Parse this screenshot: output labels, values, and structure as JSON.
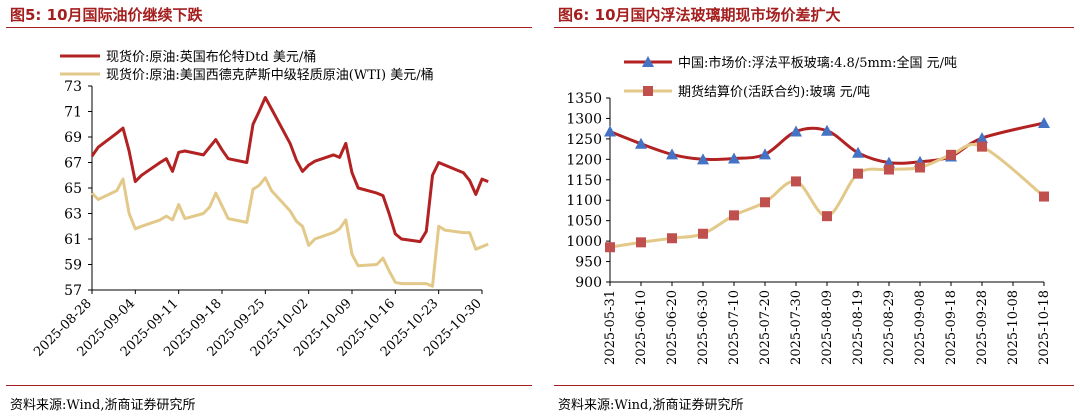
{
  "panels": [
    {
      "title": "图5:   10月国际油价继续下跌",
      "source": "资料来源:Wind,浙商证券研究所"
    },
    {
      "title": "图6:   10月国内浮法玻璃期现市场价差扩大",
      "source": "资料来源:Wind,浙商证券研究所"
    }
  ],
  "chart_data": [
    {
      "type": "line",
      "title": "",
      "xlabel": "",
      "ylabel": "",
      "ylim": [
        57,
        73
      ],
      "yticks": [
        57,
        59,
        61,
        63,
        65,
        67,
        69,
        71,
        73
      ],
      "grid": false,
      "legend_position": "top-left",
      "x_ticks": [
        "2025-08-28",
        "2025-09-04",
        "2025-09-11",
        "2025-09-18",
        "2025-09-25",
        "2025-10-02",
        "2025-10-09",
        "2025-10-16",
        "2025-10-23",
        "2025-10-30"
      ],
      "x": [
        "2025-08-28",
        "2025-08-29",
        "2025-09-01",
        "2025-09-02",
        "2025-09-03",
        "2025-09-04",
        "2025-09-05",
        "2025-09-08",
        "2025-09-09",
        "2025-09-10",
        "2025-09-11",
        "2025-09-12",
        "2025-09-15",
        "2025-09-16",
        "2025-09-17",
        "2025-09-18",
        "2025-09-19",
        "2025-09-22",
        "2025-09-23",
        "2025-09-24",
        "2025-09-25",
        "2025-09-26",
        "2025-09-29",
        "2025-09-30",
        "2025-10-01",
        "2025-10-02",
        "2025-10-03",
        "2025-10-06",
        "2025-10-07",
        "2025-10-08",
        "2025-10-09",
        "2025-10-10",
        "2025-10-13",
        "2025-10-14",
        "2025-10-15",
        "2025-10-16",
        "2025-10-17",
        "2025-10-20",
        "2025-10-21",
        "2025-10-22",
        "2025-10-23",
        "2025-10-24",
        "2025-10-27",
        "2025-10-28",
        "2025-10-29",
        "2025-10-30",
        "2025-10-31"
      ],
      "series": [
        {
          "name": "现货价:原油:英国布伦特Dtd 美元/桶",
          "color": "#b22222",
          "values": [
            67.5,
            68.2,
            69.3,
            69.7,
            67.9,
            65.5,
            66.0,
            67.0,
            67.3,
            66.3,
            67.8,
            67.9,
            67.6,
            68.2,
            68.8,
            68.0,
            67.3,
            67.0,
            70.0,
            71.0,
            72.1,
            71.2,
            68.5,
            67.2,
            66.3,
            66.8,
            67.1,
            67.6,
            67.4,
            68.5,
            66.2,
            65.0,
            64.6,
            64.4,
            63.0,
            61.4,
            61.0,
            60.8,
            61.6,
            66.0,
            67.0,
            66.8,
            66.2,
            65.6,
            64.5,
            65.7,
            65.5
          ]
        },
        {
          "name": "现货价:原油:美国西德克萨斯中级轻质原油(WTI) 美元/桶",
          "color": "#e3c989",
          "values": [
            64.6,
            64.1,
            64.8,
            65.7,
            63.0,
            61.8,
            62.0,
            62.5,
            62.8,
            62.5,
            63.7,
            62.6,
            63.0,
            63.5,
            64.6,
            63.6,
            62.6,
            62.3,
            64.9,
            65.2,
            65.8,
            64.8,
            63.2,
            62.4,
            62.0,
            60.5,
            61.0,
            61.5,
            61.8,
            62.5,
            59.8,
            58.9,
            59.0,
            59.5,
            58.5,
            57.6,
            57.5,
            57.5,
            57.5,
            57.3,
            62.0,
            61.7,
            61.5,
            61.5,
            60.2,
            60.4,
            60.6
          ]
        }
      ]
    },
    {
      "type": "line",
      "title": "",
      "xlabel": "",
      "ylabel": "",
      "ylim": [
        900,
        1350
      ],
      "yticks": [
        900,
        950,
        1000,
        1050,
        1100,
        1150,
        1200,
        1250,
        1300,
        1350
      ],
      "grid": false,
      "legend_position": "top",
      "categories": [
        "2025-05-31",
        "2025-06-10",
        "2025-06-20",
        "2025-06-30",
        "2025-07-10",
        "2025-07-20",
        "2025-07-30",
        "2025-08-09",
        "2025-08-19",
        "2025-08-29",
        "2025-09-08",
        "2025-09-18",
        "2025-09-28",
        "2025-10-08",
        "2025-10-18"
      ],
      "series": [
        {
          "name": "中国:市场价:浮法平板玻璃:4.8/5mm:全国  元/吨",
          "color": "#b22222",
          "marker": "triangle",
          "marker_color": "#4472c4",
          "values": [
            1268,
            1238,
            1212,
            1200,
            1202,
            1212,
            1268,
            1270,
            1216,
            1192,
            1194,
            1207,
            1252,
            null,
            1289
          ],
          "marker_indices": [
            0,
            1,
            2,
            3,
            4,
            5,
            6,
            7,
            8,
            9,
            10,
            11,
            12,
            14
          ]
        },
        {
          "name": "期货结算价(活跃合约):玻璃  元/吨",
          "color": "#e3c989",
          "marker": "square",
          "marker_color": "#c0504d",
          "values": [
            985,
            997,
            1007,
            1018,
            1063,
            1095,
            1146,
            1061,
            1165,
            1175,
            1180,
            1211,
            1231,
            null,
            1109
          ],
          "marker_indices": [
            0,
            1,
            2,
            3,
            4,
            5,
            6,
            7,
            8,
            9,
            10,
            11,
            12,
            14
          ]
        }
      ]
    }
  ]
}
